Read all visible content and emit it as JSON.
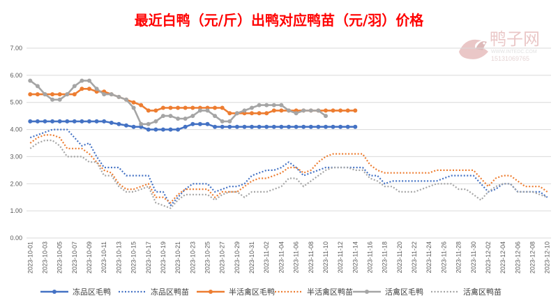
{
  "chart_data": {
    "type": "line",
    "title": "最近白鸭（元/斤）出鸭对应鸭苗（元/羽）价格",
    "watermark": {
      "text": "鸭子网",
      "url": "WWW.INTEDC.COM",
      "phone": "15131069765"
    },
    "ylim": [
      0,
      7
    ],
    "y_ticks": [
      "0.00",
      "1.00",
      "2.00",
      "3.00",
      "4.00",
      "5.00",
      "6.00",
      "7.00"
    ],
    "x_labels": [
      "2023-10-01",
      "2023-10-03",
      "2023-10-05",
      "2023-10-07",
      "2023-10-09",
      "2023-10-11",
      "2023-10-13",
      "2023-10-15",
      "2023-10-17",
      "2023-10-19",
      "2023-10-21",
      "2023-10-23",
      "2023-10-25",
      "2023-10-27",
      "2023-10-29",
      "2023-10-31",
      "2023-11-02",
      "2023-11-04",
      "2023-11-06",
      "2023-11-08",
      "2023-11-10",
      "2023-11-12",
      "2023-11-14",
      "2023-11-16",
      "2023-11-18",
      "2023-11-20",
      "2023-11-22",
      "2023-11-24",
      "2023-11-26",
      "2023-11-28",
      "2023-11-30",
      "2023-12-02",
      "2023-12-04",
      "2023-12-06",
      "2023-12-08",
      "2023-12-10"
    ],
    "num_days": 71,
    "legend_position": "bottom",
    "colors": {
      "blue": "#4472C4",
      "orange": "#ED7D31",
      "gray": "#A5A5A5",
      "title": "#FF0000"
    },
    "series": [
      {
        "name": "冻品区毛鸭",
        "color": "#4472C4",
        "style": "solid",
        "marker": true,
        "values": [
          4.3,
          4.3,
          4.3,
          4.3,
          4.3,
          4.3,
          4.3,
          4.3,
          4.3,
          4.3,
          4.3,
          4.25,
          4.2,
          4.15,
          4.1,
          4.1,
          4.0,
          4.0,
          4.0,
          4.0,
          4.0,
          4.1,
          4.2,
          4.2,
          4.2,
          4.1,
          4.1,
          4.1,
          4.1,
          4.1,
          4.1,
          4.1,
          4.1,
          4.1,
          4.1,
          4.1,
          4.1,
          4.1,
          4.1,
          4.1,
          4.1,
          4.1,
          4.1,
          4.1,
          4.1
        ]
      },
      {
        "name": "冻品区鸭苗",
        "color": "#4472C4",
        "style": "dotted",
        "marker": false,
        "values": [
          3.7,
          3.8,
          3.9,
          4.0,
          4.0,
          4.0,
          3.7,
          3.4,
          3.5,
          3.0,
          2.6,
          2.6,
          2.6,
          2.3,
          2.3,
          2.3,
          2.3,
          1.7,
          1.7,
          1.2,
          1.5,
          1.8,
          2.0,
          2.0,
          2.0,
          1.7,
          1.8,
          1.9,
          1.9,
          2.0,
          2.3,
          2.4,
          2.5,
          2.5,
          2.6,
          2.8,
          2.6,
          2.3,
          2.4,
          2.5,
          2.6,
          2.6,
          2.6,
          2.6,
          2.6,
          2.6,
          2.3,
          2.3,
          2.0,
          2.1,
          2.1,
          2.1,
          2.1,
          2.1,
          2.1,
          2.1,
          2.2,
          2.3,
          2.3,
          2.3,
          2.3,
          2.0,
          1.7,
          1.8,
          2.0,
          2.0,
          1.7,
          1.7,
          1.7,
          1.7,
          1.5
        ]
      },
      {
        "name": "半活禽区毛鸭",
        "color": "#ED7D31",
        "style": "solid",
        "marker": true,
        "values": [
          5.3,
          5.3,
          5.3,
          5.3,
          5.3,
          5.3,
          5.3,
          5.5,
          5.5,
          5.4,
          5.4,
          5.3,
          5.2,
          5.1,
          5.0,
          4.9,
          4.7,
          4.7,
          4.8,
          4.8,
          4.8,
          4.8,
          4.8,
          4.8,
          4.8,
          4.8,
          4.8,
          4.6,
          4.6,
          4.6,
          4.6,
          4.6,
          4.6,
          4.7,
          4.7,
          4.7,
          4.7,
          4.7,
          4.7,
          4.7,
          4.7,
          4.7,
          4.7,
          4.7,
          4.7
        ]
      },
      {
        "name": "半活禽区鸭苗",
        "color": "#ED7D31",
        "style": "dotted",
        "marker": false,
        "values": [
          3.5,
          3.7,
          3.8,
          3.8,
          3.7,
          3.3,
          3.3,
          3.3,
          3.1,
          2.8,
          2.5,
          2.4,
          2.0,
          1.8,
          1.8,
          1.9,
          2.0,
          1.5,
          1.5,
          1.3,
          1.6,
          1.8,
          1.8,
          1.8,
          1.8,
          1.5,
          1.7,
          1.7,
          1.7,
          1.9,
          2.1,
          2.2,
          2.2,
          2.3,
          2.4,
          2.6,
          2.6,
          2.4,
          2.5,
          2.8,
          3.0,
          3.1,
          3.1,
          3.1,
          3.1,
          3.1,
          2.7,
          2.5,
          2.4,
          2.4,
          2.4,
          2.4,
          2.4,
          2.4,
          2.4,
          2.5,
          2.5,
          2.5,
          2.5,
          2.5,
          2.5,
          2.2,
          1.9,
          2.2,
          2.3,
          2.3,
          2.1,
          1.9,
          1.9,
          1.9,
          1.7
        ]
      },
      {
        "name": "活禽区毛鸭",
        "color": "#A5A5A5",
        "style": "solid",
        "marker": true,
        "values": [
          5.8,
          5.6,
          5.3,
          5.1,
          5.1,
          5.3,
          5.6,
          5.8,
          5.8,
          5.5,
          5.3,
          5.3,
          5.2,
          5.1,
          4.8,
          4.2,
          4.2,
          4.3,
          4.5,
          4.5,
          4.4,
          4.4,
          4.5,
          4.7,
          4.7,
          4.5,
          4.3,
          4.3,
          4.6,
          4.7,
          4.8,
          4.9,
          4.9,
          4.9,
          4.9,
          4.7,
          4.6,
          4.7,
          4.7,
          4.7,
          4.5
        ]
      },
      {
        "name": "活禽区鸭苗",
        "color": "#A5A5A5",
        "style": "dotted",
        "marker": false,
        "values": [
          3.3,
          3.5,
          3.6,
          3.6,
          3.4,
          3.0,
          3.0,
          3.0,
          2.8,
          2.8,
          2.3,
          2.3,
          1.9,
          1.7,
          1.7,
          1.8,
          1.9,
          1.3,
          1.2,
          1.1,
          1.4,
          1.6,
          1.6,
          1.6,
          1.6,
          1.4,
          1.6,
          1.7,
          1.7,
          1.5,
          1.7,
          1.7,
          1.7,
          1.8,
          1.9,
          2.2,
          2.2,
          1.9,
          2.1,
          2.3,
          2.5,
          2.6,
          2.6,
          2.6,
          2.5,
          2.5,
          2.2,
          2.1,
          1.9,
          1.9,
          1.7,
          1.7,
          1.7,
          1.8,
          1.9,
          2.0,
          2.0,
          2.0,
          1.8,
          1.8,
          1.6,
          1.4,
          1.7,
          1.9,
          2.0,
          2.0,
          1.7,
          1.7,
          1.7,
          1.6,
          1.5
        ]
      }
    ]
  }
}
